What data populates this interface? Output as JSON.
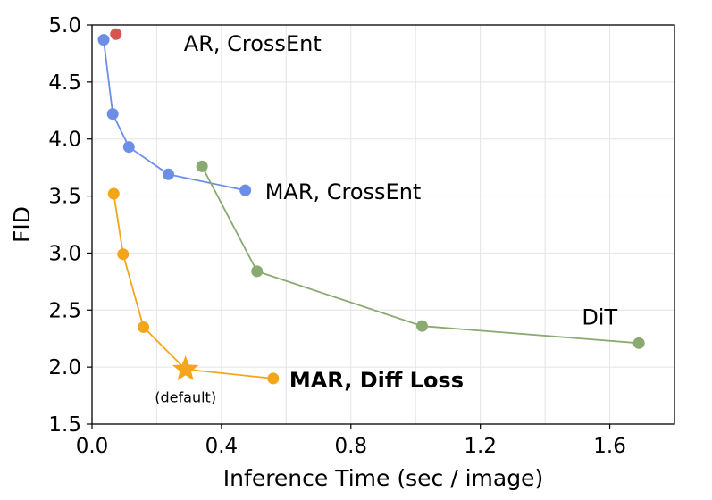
{
  "chart_data": {
    "type": "line",
    "title": "",
    "xlabel": "Inference Time (sec / image)",
    "ylabel": "FID",
    "xlim": [
      0.0,
      1.8
    ],
    "ylim": [
      1.5,
      5.0
    ],
    "xticks": [
      0.0,
      0.4,
      0.8,
      1.2,
      1.6
    ],
    "xtick_labels": [
      "0.0",
      "0.4",
      "0.8",
      "1.2",
      "1.6"
    ],
    "yticks": [
      1.5,
      2.0,
      2.5,
      3.0,
      3.5,
      4.0,
      4.5,
      5.0
    ],
    "ytick_labels": [
      "1.5",
      "2.0",
      "2.5",
      "3.0",
      "3.5",
      "4.0",
      "4.5",
      "5.0"
    ],
    "grid": true,
    "series": [
      {
        "name": "AR, CrossEnt",
        "color": "#d9534f",
        "x": [
          0.074
        ],
        "y": [
          4.92
        ]
      },
      {
        "name": "MAR, CrossEnt",
        "color": "#6c8ee6",
        "x": [
          0.036,
          0.064,
          0.114,
          0.236,
          0.474
        ],
        "y": [
          4.87,
          4.22,
          3.93,
          3.69,
          3.55
        ]
      },
      {
        "name": "DiT",
        "color": "#8aaa72",
        "x": [
          0.34,
          0.51,
          1.02,
          1.69
        ],
        "y": [
          3.76,
          2.84,
          2.36,
          2.21
        ]
      },
      {
        "name": "MAR, Diff Loss",
        "color": "#f5a519",
        "x": [
          0.067,
          0.096,
          0.159,
          0.289,
          0.56
        ],
        "y": [
          3.52,
          2.99,
          2.35,
          1.98,
          1.9
        ],
        "default_index": 3
      }
    ],
    "annotations": [
      {
        "text": "(default)",
        "x": 0.289,
        "y": 1.98
      }
    ]
  }
}
